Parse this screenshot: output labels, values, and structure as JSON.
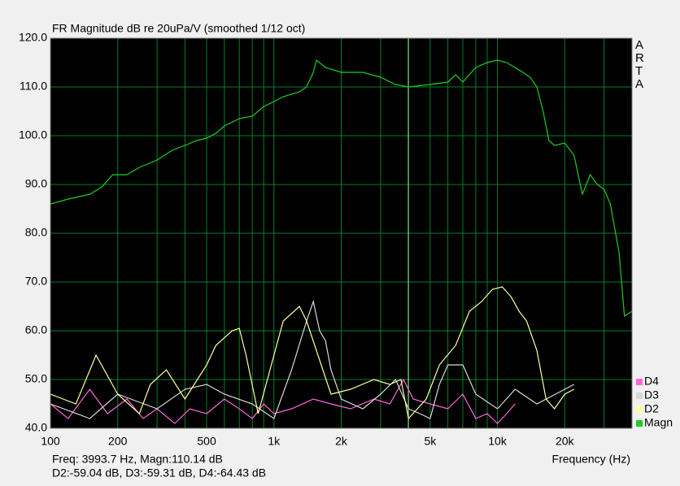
{
  "chart_data": {
    "type": "line",
    "title": "FR Magnitude dB re 20uPa/V (smoothed 1/12 oct)",
    "x_label": "Frequency (Hz)",
    "brand": "ARTA",
    "annotations": [
      "Freq: 3993.7 Hz, Magn:110.14 dB",
      "D2:-59.04 dB, D3:-59.31 dB, D4:-64.43 dB"
    ],
    "cursor_x": 3993.7,
    "log_x": true,
    "grid": true,
    "legend": "bottom-right",
    "xlim": [
      100,
      40000
    ],
    "ylim": [
      40,
      120
    ],
    "xticks": [
      100,
      200,
      500,
      {
        "value": 1000,
        "label": "1k"
      },
      {
        "value": 2000,
        "label": "2k"
      },
      {
        "value": 5000,
        "label": "5k"
      },
      {
        "value": 10000,
        "label": "10k"
      },
      {
        "value": 20000,
        "label": "20k"
      }
    ],
    "x_minor_ticks": [
      300,
      400,
      600,
      700,
      800,
      900,
      3000,
      4000,
      6000,
      7000,
      8000,
      9000,
      30000
    ],
    "yticks": [
      {
        "value": 40,
        "label": "40.0"
      },
      {
        "value": 50,
        "label": "50.0"
      },
      {
        "value": 60,
        "label": "60.0"
      },
      {
        "value": 70,
        "label": "70.0"
      },
      {
        "value": 80,
        "label": "80.0"
      },
      {
        "value": 90,
        "label": "90.0"
      },
      {
        "value": 100,
        "label": "100.0"
      },
      {
        "value": 110,
        "label": "110.0"
      },
      {
        "value": 120,
        "label": "120.0"
      }
    ],
    "series": [
      {
        "name": "Magn",
        "color": "#22cc22",
        "x": [
          100,
          120,
          150,
          170,
          190,
          220,
          250,
          300,
          350,
          400,
          450,
          500,
          550,
          600,
          700,
          800,
          900,
          1000,
          1100,
          1300,
          1400,
          1500,
          1550,
          1700,
          2000,
          2500,
          3000,
          3500,
          4000,
          5000,
          6000,
          6500,
          7000,
          8000,
          9000,
          10000,
          11000,
          13000,
          14000,
          15000,
          16000,
          17000,
          18000,
          20000,
          22000,
          24000,
          26000,
          28000,
          30000,
          32000,
          35000,
          37000,
          40000
        ],
        "values": [
          86,
          87,
          88,
          89.5,
          92,
          92,
          93.5,
          95,
          97,
          98,
          99,
          99.5,
          100.5,
          102,
          103.5,
          104,
          106,
          107,
          108,
          109,
          110,
          113,
          115.5,
          114,
          113,
          113,
          112,
          110.5,
          110,
          110.5,
          111,
          112.5,
          111,
          114,
          115,
          115.5,
          115,
          113,
          112,
          110,
          105,
          99,
          98,
          98.5,
          96,
          88,
          92,
          90,
          89,
          86,
          76,
          63,
          64
        ]
      },
      {
        "name": "D2",
        "color": "#ffffa0",
        "x": [
          100,
          130,
          160,
          200,
          250,
          280,
          330,
          400,
          500,
          550,
          650,
          700,
          750,
          850,
          1000,
          1100,
          1300,
          1400,
          1600,
          1800,
          2200,
          2800,
          3300,
          3700,
          4000,
          4800,
          5500,
          6500,
          7500,
          8500,
          9500,
          10500,
          11500,
          12500,
          13500,
          15000,
          16500,
          18000,
          20000,
          22000
        ],
        "values": [
          47,
          45,
          55,
          47,
          43,
          49,
          52,
          46,
          53,
          57,
          60,
          60.5,
          55,
          43,
          55,
          62,
          65,
          62,
          54,
          47,
          48,
          50,
          49,
          50,
          42,
          46,
          53,
          57,
          64,
          66,
          68.5,
          69,
          67,
          64,
          62,
          56,
          46,
          44,
          47,
          48
        ]
      },
      {
        "name": "D3",
        "color": "#d8d8d8",
        "x": [
          100,
          150,
          200,
          300,
          400,
          500,
          600,
          800,
          1000,
          1200,
          1400,
          1500,
          1600,
          1700,
          1800,
          2000,
          2500,
          3000,
          3500,
          4000,
          4500,
          5000,
          5500,
          6000,
          7000,
          8000,
          10000,
          12000,
          15000,
          20000,
          22000
        ],
        "values": [
          45,
          42,
          47,
          44,
          48,
          49,
          47,
          45,
          42,
          52,
          62,
          66,
          60,
          58,
          52,
          46,
          44,
          47,
          50,
          44,
          43,
          42,
          49,
          53,
          53,
          47,
          44,
          48,
          45,
          48,
          49
        ]
      },
      {
        "name": "D4",
        "color": "#ff66dd",
        "x": [
          100,
          120,
          150,
          180,
          220,
          260,
          300,
          360,
          420,
          500,
          600,
          700,
          800,
          900,
          1000,
          1200,
          1500,
          1800,
          2200,
          2800,
          3300,
          3800,
          4200,
          5000,
          6000,
          7000,
          8000,
          9000,
          10000,
          11000,
          12000
        ],
        "values": [
          45,
          42,
          48,
          43,
          46,
          42,
          44,
          41,
          44,
          43,
          46,
          44,
          42,
          45,
          43,
          44,
          46,
          45,
          44,
          46,
          45,
          50,
          46,
          45,
          44,
          47,
          42,
          43,
          41,
          43,
          45
        ]
      }
    ]
  }
}
